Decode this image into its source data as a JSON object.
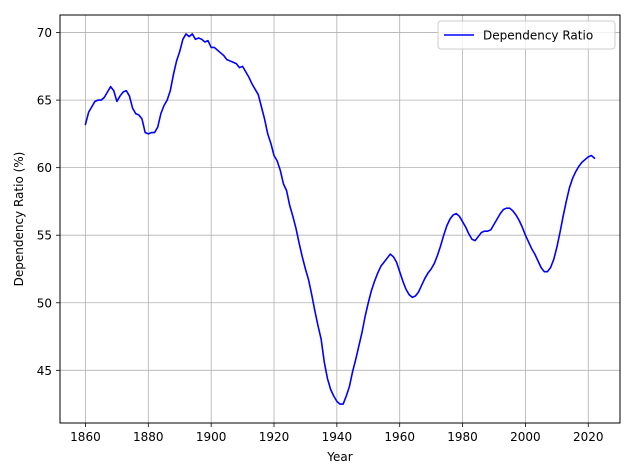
{
  "chart_data": {
    "type": "line",
    "title": "",
    "xlabel": "Year",
    "ylabel": "Dependency Ratio (%)",
    "xlim": [
      1851.9,
      2030.1
    ],
    "ylim": [
      41.1,
      71.3
    ],
    "x_ticks": [
      1860,
      1880,
      1900,
      1920,
      1940,
      1960,
      1980,
      2000,
      2020
    ],
    "y_ticks": [
      45,
      50,
      55,
      60,
      65,
      70
    ],
    "grid": true,
    "legend_position": "top-right",
    "series": [
      {
        "name": "Dependency Ratio",
        "color": "#0000ff",
        "points": [
          [
            1860,
            63.2
          ],
          [
            1861,
            64.1
          ],
          [
            1862,
            64.5
          ],
          [
            1863,
            64.9
          ],
          [
            1864,
            65.0
          ],
          [
            1865,
            65.0
          ],
          [
            1866,
            65.2
          ],
          [
            1867,
            65.6
          ],
          [
            1868,
            66.0
          ],
          [
            1869,
            65.7
          ],
          [
            1870,
            64.9
          ],
          [
            1871,
            65.3
          ],
          [
            1872,
            65.6
          ],
          [
            1873,
            65.7
          ],
          [
            1874,
            65.3
          ],
          [
            1875,
            64.4
          ],
          [
            1876,
            64.0
          ],
          [
            1877,
            63.9
          ],
          [
            1878,
            63.6
          ],
          [
            1879,
            62.6
          ],
          [
            1880,
            62.5
          ],
          [
            1881,
            62.6
          ],
          [
            1882,
            62.6
          ],
          [
            1883,
            63.0
          ],
          [
            1884,
            64.0
          ],
          [
            1885,
            64.6
          ],
          [
            1886,
            65.0
          ],
          [
            1887,
            65.7
          ],
          [
            1888,
            66.9
          ],
          [
            1889,
            67.9
          ],
          [
            1890,
            68.6
          ],
          [
            1891,
            69.5
          ],
          [
            1892,
            69.9
          ],
          [
            1893,
            69.7
          ],
          [
            1894,
            69.9
          ],
          [
            1895,
            69.5
          ],
          [
            1896,
            69.6
          ],
          [
            1897,
            69.5
          ],
          [
            1898,
            69.3
          ],
          [
            1899,
            69.4
          ],
          [
            1900,
            68.9
          ],
          [
            1901,
            68.9
          ],
          [
            1902,
            68.7
          ],
          [
            1903,
            68.5
          ],
          [
            1904,
            68.3
          ],
          [
            1905,
            68.0
          ],
          [
            1906,
            67.9
          ],
          [
            1907,
            67.8
          ],
          [
            1908,
            67.7
          ],
          [
            1909,
            67.4
          ],
          [
            1910,
            67.5
          ],
          [
            1911,
            67.1
          ],
          [
            1912,
            66.7
          ],
          [
            1913,
            66.2
          ],
          [
            1914,
            65.8
          ],
          [
            1915,
            65.4
          ],
          [
            1916,
            64.5
          ],
          [
            1917,
            63.6
          ],
          [
            1918,
            62.5
          ],
          [
            1919,
            61.8
          ],
          [
            1920,
            60.9
          ],
          [
            1921,
            60.5
          ],
          [
            1922,
            59.8
          ],
          [
            1923,
            58.8
          ],
          [
            1924,
            58.3
          ],
          [
            1925,
            57.2
          ],
          [
            1926,
            56.4
          ],
          [
            1927,
            55.5
          ],
          [
            1928,
            54.4
          ],
          [
            1929,
            53.4
          ],
          [
            1930,
            52.5
          ],
          [
            1931,
            51.7
          ],
          [
            1932,
            50.6
          ],
          [
            1933,
            49.4
          ],
          [
            1934,
            48.3
          ],
          [
            1935,
            47.3
          ],
          [
            1936,
            45.6
          ],
          [
            1937,
            44.4
          ],
          [
            1938,
            43.6
          ],
          [
            1939,
            43.1
          ],
          [
            1940,
            42.7
          ],
          [
            1941,
            42.5
          ],
          [
            1942,
            42.5
          ],
          [
            1943,
            43.1
          ],
          [
            1944,
            43.8
          ],
          [
            1945,
            44.9
          ],
          [
            1946,
            45.8
          ],
          [
            1947,
            46.8
          ],
          [
            1948,
            47.8
          ],
          [
            1949,
            49.0
          ],
          [
            1950,
            50.0
          ],
          [
            1951,
            50.9
          ],
          [
            1952,
            51.6
          ],
          [
            1953,
            52.2
          ],
          [
            1954,
            52.7
          ],
          [
            1955,
            53.0
          ],
          [
            1956,
            53.3
          ],
          [
            1957,
            53.6
          ],
          [
            1958,
            53.4
          ],
          [
            1959,
            53.0
          ],
          [
            1960,
            52.3
          ],
          [
            1961,
            51.6
          ],
          [
            1962,
            51.0
          ],
          [
            1963,
            50.6
          ],
          [
            1964,
            50.4
          ],
          [
            1965,
            50.5
          ],
          [
            1966,
            50.8
          ],
          [
            1967,
            51.3
          ],
          [
            1968,
            51.8
          ],
          [
            1969,
            52.2
          ],
          [
            1970,
            52.5
          ],
          [
            1971,
            52.9
          ],
          [
            1972,
            53.5
          ],
          [
            1973,
            54.2
          ],
          [
            1974,
            55.0
          ],
          [
            1975,
            55.7
          ],
          [
            1976,
            56.2
          ],
          [
            1977,
            56.5
          ],
          [
            1978,
            56.6
          ],
          [
            1979,
            56.4
          ],
          [
            1980,
            56.0
          ],
          [
            1981,
            55.6
          ],
          [
            1982,
            55.1
          ],
          [
            1983,
            54.7
          ],
          [
            1984,
            54.6
          ],
          [
            1985,
            54.9
          ],
          [
            1986,
            55.2
          ],
          [
            1987,
            55.3
          ],
          [
            1988,
            55.3
          ],
          [
            1989,
            55.4
          ],
          [
            1990,
            55.8
          ],
          [
            1991,
            56.2
          ],
          [
            1992,
            56.6
          ],
          [
            1993,
            56.9
          ],
          [
            1994,
            57.0
          ],
          [
            1995,
            57.0
          ],
          [
            1996,
            56.8
          ],
          [
            1997,
            56.5
          ],
          [
            1998,
            56.1
          ],
          [
            1999,
            55.6
          ],
          [
            2000,
            55.0
          ],
          [
            2001,
            54.5
          ],
          [
            2002,
            54.0
          ],
          [
            2003,
            53.6
          ],
          [
            2004,
            53.1
          ],
          [
            2005,
            52.6
          ],
          [
            2006,
            52.3
          ],
          [
            2007,
            52.3
          ],
          [
            2008,
            52.6
          ],
          [
            2009,
            53.2
          ],
          [
            2010,
            54.1
          ],
          [
            2011,
            55.2
          ],
          [
            2012,
            56.4
          ],
          [
            2013,
            57.5
          ],
          [
            2014,
            58.5
          ],
          [
            2015,
            59.2
          ],
          [
            2016,
            59.7
          ],
          [
            2017,
            60.1
          ],
          [
            2018,
            60.4
          ],
          [
            2019,
            60.6
          ],
          [
            2020,
            60.8
          ],
          [
            2021,
            60.9
          ],
          [
            2022,
            60.7
          ]
        ]
      }
    ]
  }
}
